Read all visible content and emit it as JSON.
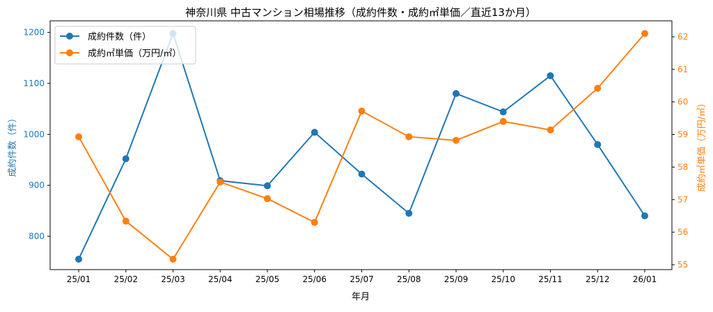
{
  "chart_data": {
    "type": "line",
    "title": "神奈川県 中古マンション相場推移（成約件数・成約㎡単価／直近13か月）",
    "xlabel": "年月",
    "categories": [
      "25/01",
      "25/02",
      "25/03",
      "25/04",
      "25/05",
      "25/06",
      "25/07",
      "25/08",
      "25/09",
      "25/10",
      "25/11",
      "25/12",
      "26/01"
    ],
    "series": [
      {
        "name": "成約件数（件）",
        "axis": "left",
        "color": "#1f77b4",
        "values": [
          755,
          952,
          1198,
          909,
          899,
          1004,
          922,
          845,
          1080,
          1044,
          1115,
          980,
          840
        ]
      },
      {
        "name": "成約㎡単価（万円/㎡）",
        "axis": "right",
        "color": "#ff7f0e",
        "values": [
          58.93,
          56.34,
          55.17,
          57.54,
          57.03,
          56.3,
          59.72,
          58.93,
          58.82,
          59.4,
          59.14,
          60.42,
          62.1
        ]
      }
    ],
    "ylabel_left": "成約件数（件）",
    "ylabel_right": "成約㎡単価（万円/㎡）",
    "ylim_left": [
      734.5,
      1222.7
    ],
    "ylim_right": [
      54.85,
      62.49
    ],
    "yticks_left": [
      800,
      900,
      1000,
      1100,
      1200
    ],
    "yticks_right": [
      55,
      56,
      57,
      58,
      59,
      60,
      61,
      62
    ],
    "grid": false,
    "legend": "top-left"
  }
}
